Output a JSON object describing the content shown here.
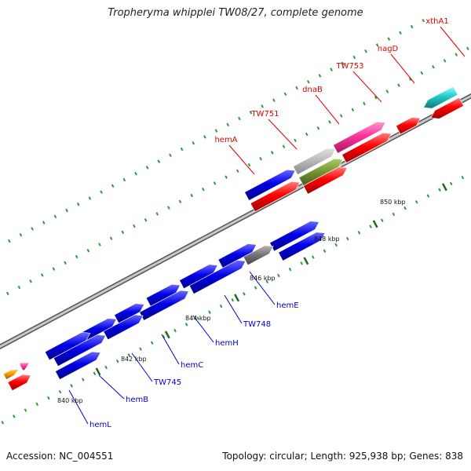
{
  "title": "Tropheryma whipplei TW08/27, complete genome",
  "accession_text": "Accession: NC_004551",
  "summary_text": "Topology: circular; Length: 925,938 bp; Genes: 838",
  "colors": {
    "forward_gene": "#0000e0",
    "reverse_gene": "#ff0000",
    "rna": "#ff3399",
    "trna": "#22cccc",
    "pseudo": "#888888",
    "other": "#779933",
    "label_forward": "#0000cc",
    "label_reverse": "#dd0000",
    "backbone": "#999999",
    "tick": "#339933"
  },
  "ticks": [
    {
      "label": "840 kbp"
    },
    {
      "label": "842 kbp"
    },
    {
      "label": "844 kbp"
    },
    {
      "label": "846 kbp"
    },
    {
      "label": "848 kbp"
    },
    {
      "label": "850 kbp"
    }
  ],
  "genes": [
    {
      "label": "hemL",
      "strand": "forward"
    },
    {
      "label": "hemB",
      "strand": "forward"
    },
    {
      "label": "TW745",
      "strand": "forward"
    },
    {
      "label": "hemC",
      "strand": "forward"
    },
    {
      "label": "hemH",
      "strand": "forward"
    },
    {
      "label": "TW748",
      "strand": "forward"
    },
    {
      "label": "hemE",
      "strand": "forward"
    },
    {
      "label": "hemA",
      "strand": "reverse"
    },
    {
      "label": "TW751",
      "strand": "reverse"
    },
    {
      "label": "dnaB",
      "strand": "reverse"
    },
    {
      "label": "TW753",
      "strand": "reverse"
    },
    {
      "label": "nagD",
      "strand": "reverse"
    },
    {
      "label": "xthA1",
      "strand": "reverse"
    }
  ]
}
